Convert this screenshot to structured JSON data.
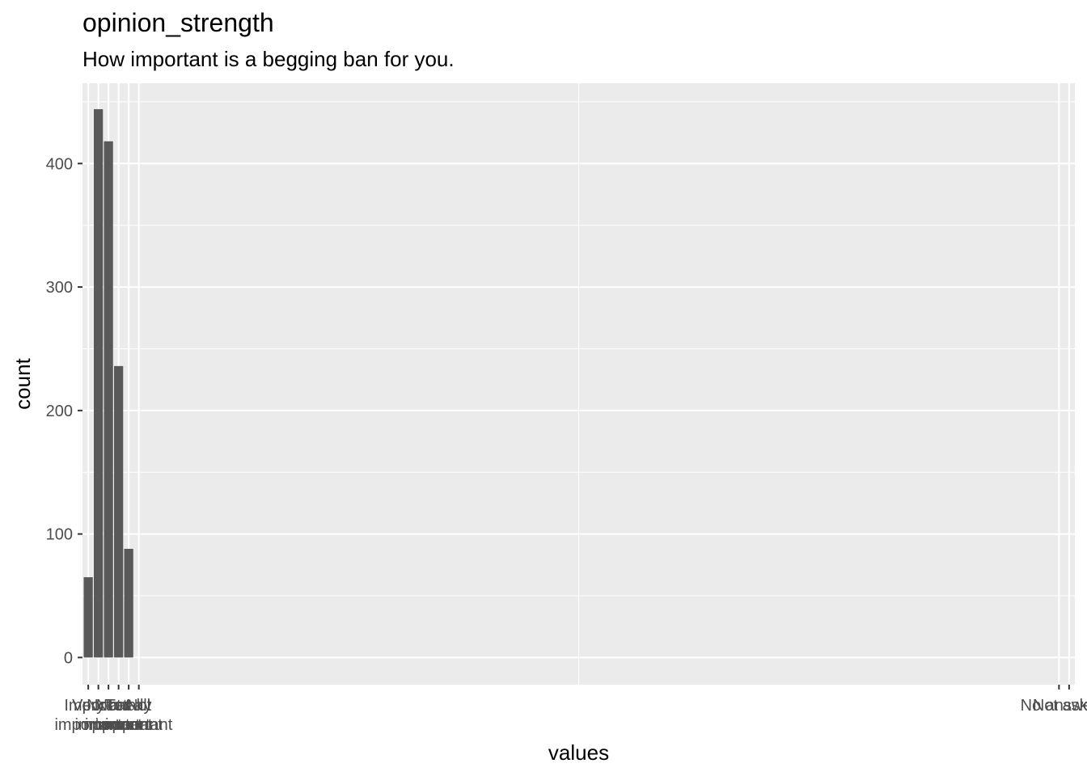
{
  "chart_data": {
    "type": "bar",
    "title": "opinion_strength",
    "subtitle": "How important is a begging ban for you.",
    "xlabel": "values",
    "ylabel": "count",
    "ylim": [
      -22,
      465
    ],
    "y_ticks": [
      0,
      100,
      200,
      300,
      400
    ],
    "x_tick_positions": [
      1,
      2,
      3,
      4,
      5,
      6,
      97,
      98
    ],
    "bars": [
      {
        "x": 1,
        "value": 65
      },
      {
        "x": 2,
        "value": 444
      },
      {
        "x": 3,
        "value": 418
      },
      {
        "x": 4,
        "value": 236
      },
      {
        "x": 5,
        "value": 88
      }
    ],
    "x_tick_labels": [
      [
        "Very",
        "important"
      ],
      [
        "Important"
      ],
      [
        "Not",
        "important"
      ],
      [
        "Not at all",
        "important"
      ],
      [
        "Totally",
        "important"
      ],
      [
        "Not",
        "important"
      ],
      [
        "No answer"
      ],
      [
        "Not asked"
      ]
    ],
    "grid": true,
    "colors": {
      "bar": "#595959",
      "panel": "#ebebeb",
      "grid": "#ffffff",
      "tick_text": "#4d4d4d"
    }
  }
}
